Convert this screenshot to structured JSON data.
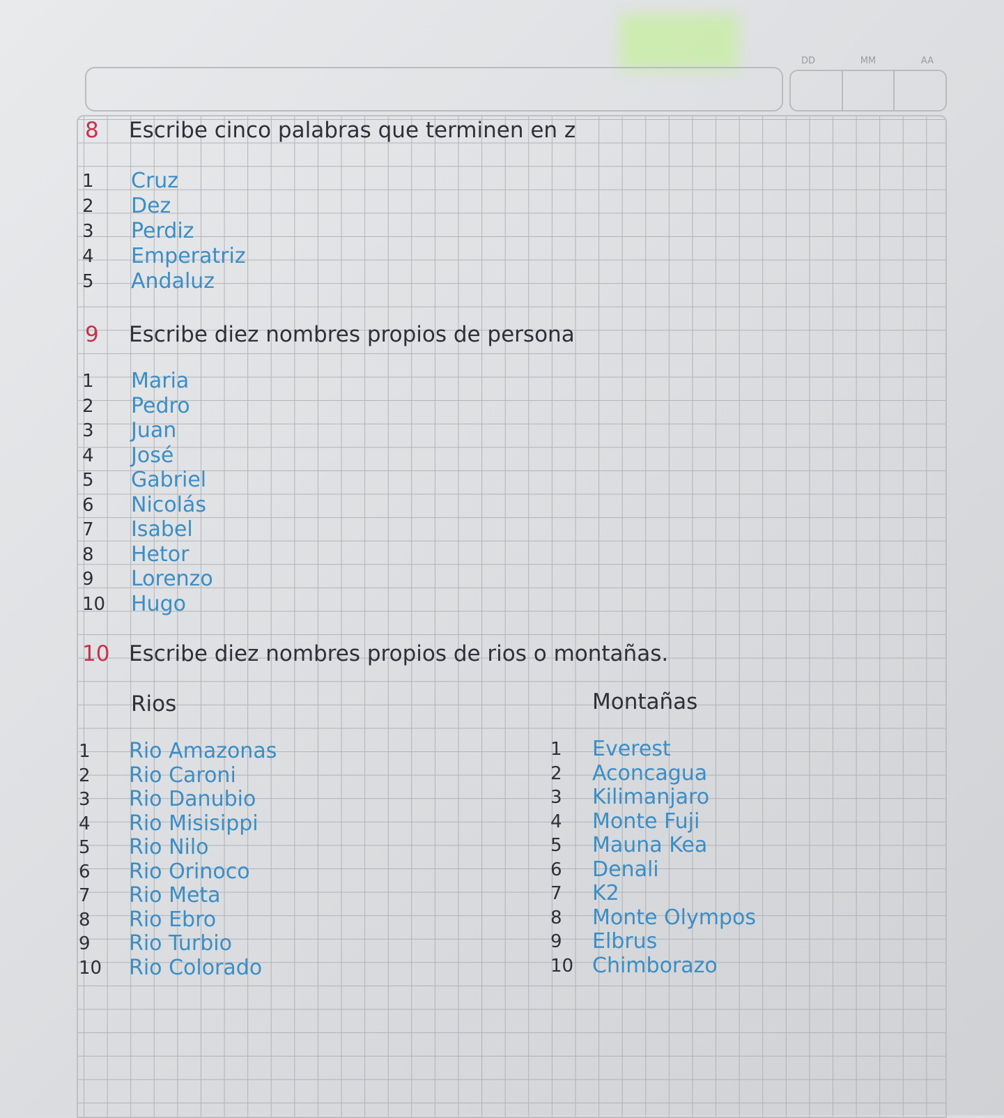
{
  "header": {
    "date_labels": [
      "DD",
      "MM",
      "AA"
    ]
  },
  "colors": {
    "section_number": "#c9304c",
    "instructions": "#2f2f38",
    "answers": "#3b8ec6"
  },
  "section8": {
    "number": "8",
    "instruction": "Escribe cinco palabras que terminen en z",
    "items": [
      {
        "n": "1",
        "text": "Cruz"
      },
      {
        "n": "2",
        "text": "Dez"
      },
      {
        "n": "3",
        "text": "Perdiz"
      },
      {
        "n": "4",
        "text": "Emperatriz"
      },
      {
        "n": "5",
        "text": "Andaluz"
      }
    ]
  },
  "section9": {
    "number": "9",
    "instruction": "Escribe diez nombres propios de persona",
    "items": [
      {
        "n": "1",
        "text": "Maria"
      },
      {
        "n": "2",
        "text": "Pedro"
      },
      {
        "n": "3",
        "text": "Juan"
      },
      {
        "n": "4",
        "text": "José"
      },
      {
        "n": "5",
        "text": "Gabriel"
      },
      {
        "n": "6",
        "text": "Nicolás"
      },
      {
        "n": "7",
        "text": "Isabel"
      },
      {
        "n": "8",
        "text": "Hetor"
      },
      {
        "n": "9",
        "text": "Lorenzo"
      },
      {
        "n": "10",
        "text": "Hugo"
      }
    ]
  },
  "section10": {
    "number": "10",
    "instruction": "Escribe diez nombres propios de rios o montañas.",
    "rivers_heading": "Rios",
    "mountains_heading": "Montañas",
    "rivers": [
      {
        "n": "1",
        "text": "Rio Amazonas"
      },
      {
        "n": "2",
        "text": "Rio Caroni"
      },
      {
        "n": "3",
        "text": "Rio Danubio"
      },
      {
        "n": "4",
        "text": "Rio Misisippi"
      },
      {
        "n": "5",
        "text": "Rio Nilo"
      },
      {
        "n": "6",
        "text": "Rio Orinoco"
      },
      {
        "n": "7",
        "text": "Rio Meta"
      },
      {
        "n": "8",
        "text": "Rio Ebro"
      },
      {
        "n": "9",
        "text": "Rio Turbio"
      },
      {
        "n": "10",
        "text": "Rio Colorado"
      }
    ],
    "mountains": [
      {
        "n": "1",
        "text": "Everest"
      },
      {
        "n": "2",
        "text": "Aconcagua"
      },
      {
        "n": "3",
        "text": "Kilimanjaro"
      },
      {
        "n": "4",
        "text": "Monte Fuji"
      },
      {
        "n": "5",
        "text": "Mauna Kea"
      },
      {
        "n": "6",
        "text": "Denali"
      },
      {
        "n": "7",
        "text": "K2"
      },
      {
        "n": "8",
        "text": "Monte Olympos"
      },
      {
        "n": "9",
        "text": "Elbrus"
      },
      {
        "n": "10",
        "text": "Chimborazo"
      }
    ]
  }
}
